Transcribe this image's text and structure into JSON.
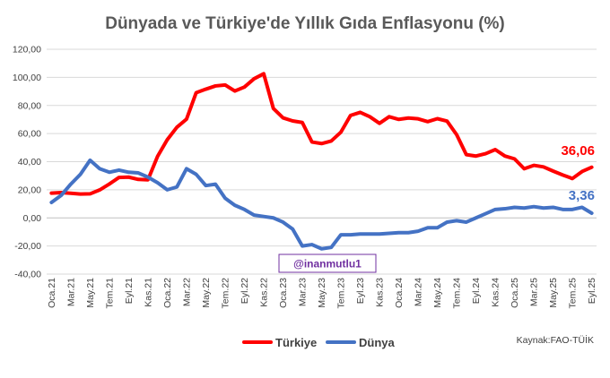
{
  "chart_data": {
    "type": "line",
    "title": "Dünyada ve Türkiye'de Yıllık Gıda Enflasyonu (%)",
    "ylim": [
      -40,
      120
    ],
    "yticks": [
      "-40,00",
      "-20,00",
      "0,00",
      "20,00",
      "40,00",
      "60,00",
      "80,00",
      "100,00",
      "120,00"
    ],
    "ytick_values": [
      -40,
      -20,
      0,
      20,
      40,
      60,
      80,
      100,
      120
    ],
    "x": [
      "Oca.21",
      "Şub.21",
      "Mar.21",
      "Nis.21",
      "May.21",
      "Haz.21",
      "Tem.21",
      "Ağu.21",
      "Eyl.21",
      "Eki.21",
      "Kas.21",
      "Ara.21",
      "Oca.22",
      "Şub.22",
      "Mar.22",
      "Nis.22",
      "May.22",
      "Haz.22",
      "Tem.22",
      "Ağu.22",
      "Eyl.22",
      "Eki.22",
      "Kas.22",
      "Ara.22",
      "Oca.23",
      "Şub.23",
      "Mar.23",
      "Nis.23",
      "May.23",
      "Haz.23",
      "Tem.23",
      "Ağu.23",
      "Eyl.23",
      "Eki.23",
      "Kas.23",
      "Ara.23",
      "Oca.24",
      "Şub.24",
      "Mar.24",
      "Nis.24",
      "May.24",
      "Haz.24",
      "Tem.24",
      "Ağu.24",
      "Eyl.24",
      "Eki.24",
      "Kas.24",
      "Ara.24",
      "Oca.25",
      "Şub.25",
      "Mar.25",
      "Nis.25",
      "May.25",
      "Haz.25",
      "Tem.25",
      "Ağu.25",
      "Eyl.25"
    ],
    "xtick_labels": [
      "Oca.21",
      "Mar.21",
      "May.21",
      "Tem.21",
      "Eyl.21",
      "Kas.21",
      "Oca.22",
      "Mar.22",
      "May.22",
      "Tem.22",
      "Eyl.22",
      "Kas.22",
      "Oca.23",
      "Mar.23",
      "May.23",
      "Tem.23",
      "Eyl.23",
      "Kas.23",
      "Oca.24",
      "Mar.24",
      "May.24",
      "Tem.24",
      "Eyl.24",
      "Kas.24",
      "Oca.25",
      "Mar.25",
      "May.25",
      "Tem.25",
      "Eyl.25"
    ],
    "series": [
      {
        "name": "Türkiye",
        "color": "#ff0000",
        "values": [
          17.6,
          18.0,
          17.5,
          17.0,
          17.1,
          19.9,
          24.1,
          28.8,
          29.0,
          27.4,
          27.1,
          43.8,
          55.6,
          64.5,
          70.3,
          89.1,
          91.6,
          93.9,
          94.6,
          90.3,
          93.1,
          99.0,
          102.6,
          77.9,
          71.2,
          69.0,
          67.9,
          54.0,
          52.9,
          54.7,
          61.0,
          72.9,
          75.1,
          72.0,
          67.3,
          72.0,
          70.1,
          71.1,
          70.5,
          68.5,
          70.6,
          68.9,
          59.2,
          45.0,
          44.0,
          45.7,
          48.6,
          44.0,
          42.0,
          35.0,
          37.4,
          36.3,
          33.3,
          30.5,
          28.0,
          33.0,
          36.06
        ]
      },
      {
        "name": "Dünya",
        "color": "#4472c4",
        "values": [
          11.0,
          16.0,
          24.0,
          31.0,
          41.0,
          35.0,
          32.5,
          34.0,
          32.5,
          32.0,
          29.0,
          25.0,
          20.0,
          22.0,
          35.0,
          31.0,
          23.0,
          24.0,
          14.0,
          9.0,
          6.0,
          2.0,
          1.0,
          0.0,
          -3.0,
          -8.0,
          -20.0,
          -19.0,
          -22.0,
          -21.0,
          -12.0,
          -12.0,
          -11.5,
          -11.5,
          -11.5,
          -11.0,
          -10.5,
          -10.5,
          -9.5,
          -7.0,
          -7.0,
          -3.0,
          -2.0,
          -3.0,
          0.0,
          3.0,
          6.0,
          6.5,
          7.5,
          7.0,
          8.0,
          7.0,
          7.5,
          6.0,
          6.0,
          7.5,
          3.36
        ]
      }
    ],
    "end_labels": [
      "36,06",
      "3,36"
    ],
    "watermark": "@inanmutlu1",
    "source": "Kaynak:FAO-TÜİK",
    "legend_position": "bottom"
  }
}
